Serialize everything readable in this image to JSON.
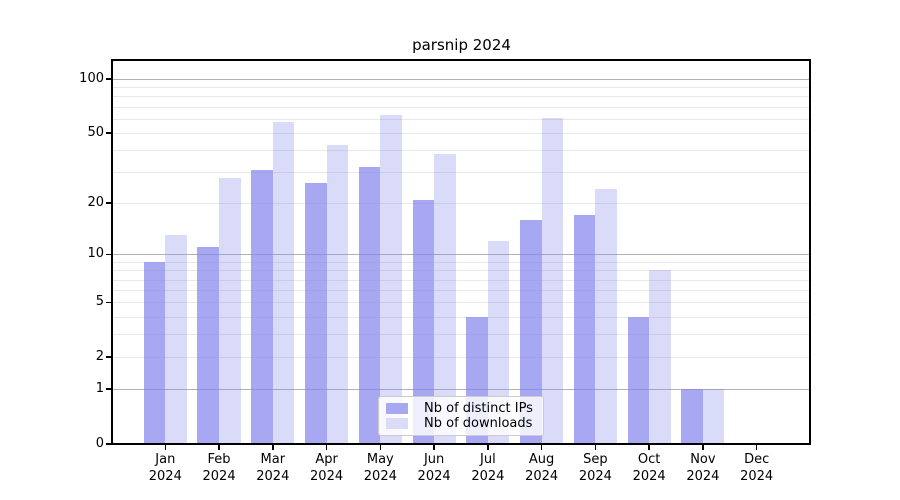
{
  "chart_data": {
    "type": "bar",
    "title": "parsnip 2024",
    "categories": [
      "Jan",
      "Feb",
      "Mar",
      "Apr",
      "May",
      "Jun",
      "Jul",
      "Aug",
      "Sep",
      "Oct",
      "Nov",
      "Dec"
    ],
    "x_tick_year": "2024",
    "series": [
      {
        "name": "Nb of distinct IPs",
        "values": [
          9,
          11,
          31,
          26,
          32,
          21,
          4,
          16,
          17,
          4,
          1,
          0
        ],
        "fill": "rgba(131,131,236,0.7)",
        "swatch": "#a8a8f2"
      },
      {
        "name": "Nb of downloads",
        "values": [
          13,
          28,
          58,
          43,
          63,
          38,
          12,
          61,
          24,
          8,
          1,
          0
        ],
        "fill": "rgba(131,131,236,0.3)",
        "swatch": "#dcdcf9"
      }
    ],
    "y_axis": {
      "scale": "log1p",
      "tick_labels": [
        "100",
        "50",
        "20",
        "10",
        "5",
        "2",
        "1",
        "0"
      ],
      "tick_values": [
        100,
        50,
        20,
        10,
        5,
        2,
        1,
        0
      ],
      "major_gridlines": [
        1,
        10,
        100
      ],
      "minor_gridlines": [
        2,
        3,
        4,
        5,
        6,
        7,
        8,
        9,
        20,
        30,
        40,
        50,
        60,
        70,
        80,
        90
      ],
      "ylim": [
        0,
        127
      ]
    },
    "legend": {
      "position": "lower center"
    },
    "colors": {
      "bar_base": "#8383ec",
      "grid_major": "#b2b2b2",
      "grid_minor": "#e9e9e9",
      "axis": "#000000",
      "legend_border": "#cccccc",
      "legend_bg": "rgba(255,255,255,0.8)",
      "text": "#000000"
    }
  }
}
